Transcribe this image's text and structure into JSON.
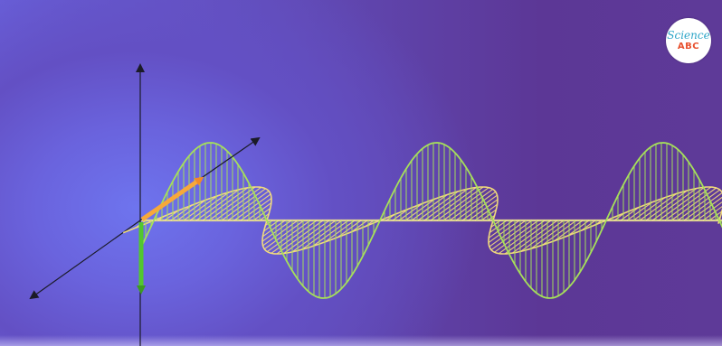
{
  "logo": {
    "line1": "Science",
    "line2": "ABC"
  },
  "colors": {
    "electric_field": "#a6e05a",
    "magnetic_field": "#f7e07a",
    "axis": "#1b1b28",
    "e_vector": "#52c72e",
    "b_vector": "#f7a83a"
  }
}
